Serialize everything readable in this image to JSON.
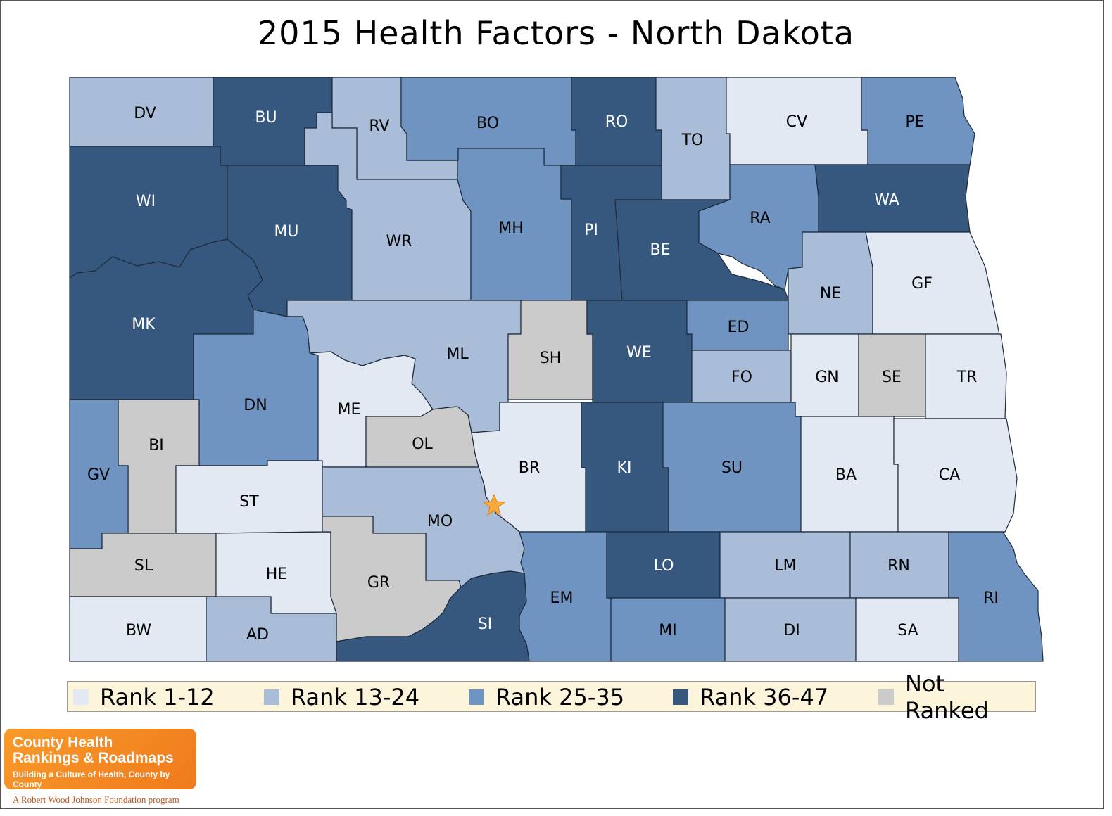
{
  "title": "2015 Health Factors - North Dakota",
  "colors": {
    "rank_1_12": "#e2e9f3",
    "rank_13_24": "#a9bcd8",
    "rank_25_35": "#6f94c2",
    "rank_36_47": "#36587f",
    "not_ranked": "#cbcbcb",
    "state_capital_star": "#f8a93a"
  },
  "legend": [
    {
      "label": "Rank 1-12",
      "class": "rank_1_12"
    },
    {
      "label": "Rank 13-24",
      "class": "rank_13_24"
    },
    {
      "label": "Rank 25-35",
      "class": "rank_25_35"
    },
    {
      "label": "Rank 36-47",
      "class": "rank_36_47"
    },
    {
      "label": "Not Ranked",
      "class": "not_ranked"
    }
  ],
  "counties": [
    {
      "label": "DV",
      "class": "rank_13_24"
    },
    {
      "label": "BU",
      "class": "rank_36_47"
    },
    {
      "label": "RV",
      "class": "rank_13_24"
    },
    {
      "label": "BO",
      "class": "rank_25_35"
    },
    {
      "label": "RO",
      "class": "rank_36_47"
    },
    {
      "label": "TO",
      "class": "rank_13_24"
    },
    {
      "label": "CV",
      "class": "rank_1_12"
    },
    {
      "label": "PE",
      "class": "rank_25_35"
    },
    {
      "label": "WI",
      "class": "rank_36_47"
    },
    {
      "label": "MU",
      "class": "rank_36_47"
    },
    {
      "label": "WR",
      "class": "rank_13_24"
    },
    {
      "label": "MH",
      "class": "rank_25_35"
    },
    {
      "label": "PI",
      "class": "rank_36_47"
    },
    {
      "label": "BE",
      "class": "rank_36_47"
    },
    {
      "label": "RA",
      "class": "rank_25_35"
    },
    {
      "label": "WA",
      "class": "rank_36_47"
    },
    {
      "label": "MK",
      "class": "rank_36_47"
    },
    {
      "label": "NE",
      "class": "rank_13_24"
    },
    {
      "label": "GF",
      "class": "rank_1_12"
    },
    {
      "label": "ML",
      "class": "rank_13_24"
    },
    {
      "label": "SH",
      "class": "not_ranked"
    },
    {
      "label": "WE",
      "class": "rank_36_47"
    },
    {
      "label": "ED",
      "class": "rank_25_35"
    },
    {
      "label": "FO",
      "class": "rank_13_24"
    },
    {
      "label": "GN",
      "class": "rank_1_12"
    },
    {
      "label": "SE",
      "class": "not_ranked"
    },
    {
      "label": "TR",
      "class": "rank_1_12"
    },
    {
      "label": "DN",
      "class": "rank_25_35"
    },
    {
      "label": "ME",
      "class": "rank_1_12"
    },
    {
      "label": "OL",
      "class": "not_ranked"
    },
    {
      "label": "BI",
      "class": "not_ranked"
    },
    {
      "label": "GV",
      "class": "rank_25_35"
    },
    {
      "label": "BR",
      "class": "rank_1_12"
    },
    {
      "label": "KI",
      "class": "rank_36_47"
    },
    {
      "label": "SU",
      "class": "rank_25_35"
    },
    {
      "label": "BA",
      "class": "rank_1_12"
    },
    {
      "label": "CA",
      "class": "rank_1_12"
    },
    {
      "label": "ST",
      "class": "rank_1_12"
    },
    {
      "label": "MO",
      "class": "rank_13_24"
    },
    {
      "label": "SL",
      "class": "not_ranked"
    },
    {
      "label": "HE",
      "class": "rank_1_12"
    },
    {
      "label": "GR",
      "class": "not_ranked"
    },
    {
      "label": "EM",
      "class": "rank_25_35"
    },
    {
      "label": "LO",
      "class": "rank_36_47"
    },
    {
      "label": "LM",
      "class": "rank_13_24"
    },
    {
      "label": "RN",
      "class": "rank_13_24"
    },
    {
      "label": "RI",
      "class": "rank_25_35"
    },
    {
      "label": "SI",
      "class": "rank_36_47"
    },
    {
      "label": "BW",
      "class": "rank_1_12"
    },
    {
      "label": "AD",
      "class": "rank_13_24"
    },
    {
      "label": "MI",
      "class": "rank_25_35"
    },
    {
      "label": "DI",
      "class": "rank_13_24"
    },
    {
      "label": "SA",
      "class": "rank_1_12"
    }
  ],
  "logo": {
    "line1": "County Health",
    "line2": "Rankings & Roadmaps",
    "line3": "Building a Culture of Health, County by County",
    "program": "A Robert Wood Johnson Foundation program"
  }
}
